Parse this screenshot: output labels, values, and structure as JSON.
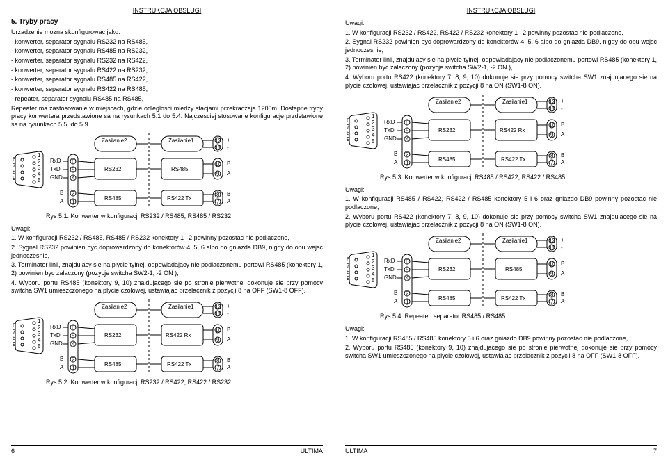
{
  "header": "INSTRUKCJA OBSLUGI",
  "footer_brand": "ULTIMA",
  "page_left_num": "6",
  "page_right_num": "7",
  "section5": {
    "title": "5. Tryby pracy",
    "intro": "Urzadzenie mozna skonfigurowac jako:",
    "bullets": [
      "- konwerter, separator sygnalu RS232 na RS485,",
      "- konwerter, separator sygnalu RS485 na RS232,",
      "- konwerter, separator sygnalu RS232 na RS422,",
      "- konwerter, separator sygnalu RS422 na RS232,",
      "- konwerter, separator sygnalu RS485 na RS422,",
      "- konwerter, separator sygnalu RS422 na RS485,",
      "- repeater, separator sygnalu RS485 na RS485,"
    ],
    "tail1": "Repeater ma zastosowanie w miejscach, gdzie odleglosci miedzy stacjami przekraczaja 1200m. Dostepne tryby pracy konwertera przedstawione sa na rysunkach 5.1 do 5.4. Najczesciej stosowane konfiguracje przdstawione sa na rysunkach 5.5. do 5.9."
  },
  "fig51_caption": "Rys 5.1. Konwerter w konfiguracji RS232 / RS485, RS485 / RS232",
  "uwagi51": {
    "title": "Uwagi:",
    "p1": "1. W konfiguracji RS232 / RS485, RS485 / RS232 konektory 1 i 2 powinny pozostac nie podlaczone,",
    "p2": "2. Sygnal RS232 powinien byc doprowardzony do konektorów 4, 5, 6 albo do gniazda DB9, nigdy do obu wejsc jednoczesnie,",
    "p3": "3. Terminator linii, znajdujacy sie na plycie tylnej, odpowiadajacy nie podlaczonemu portowi RS485 (konektory 1, 2) powinien byc zalaczony (pozycje switcha SW2-1, -2  ON ),",
    "p4": "4. Wyboru portu RS485 (konektory 9, 10) znajdujacego sie po stronie pierwotnej dokonuje sie przy pomocy switcha SW1 umieszczonego na plycie czolowej, ustawiajac przelacznik z pozycji 8 na OFF (SW1-8 OFF)."
  },
  "fig52_caption": "Rys 5.2. Konwerter w konfiguracji RS232 / RS422, RS422 / RS232",
  "uwagi_right_top": {
    "title": "Uwagi:",
    "p1": "1. W konfiguracji RS232 / RS422, RS422 / RS232 konektory 1 i 2 powinny pozostac nie podlaczone,",
    "p2": "2. Sygnal RS232 powinien byc doprowardzony do konektorów 4, 5, 6 albo do gniazda DB9, nigdy do obu wejsc jednoczesnie,",
    "p3": "3. Terminator linii, znajdujacy sie na plycie tylnej, odpowiadajacy nie podlaczonemu portowi RS485 (konektory 1, 2) powinien byc zalaczony (pozycje switcha SW2-1, -2  ON ),",
    "p4": "4. Wyboru portu RS422 (konektory 7, 8, 9, 10) dokonuje sie przy pomocy switcha SW1 znajdujacego sie na plycie czolowej, ustawiajac przelacznik z pozycji 8 na ON (SW1-8 ON)."
  },
  "fig53_caption": "Rys 5.3. Konwerter w konfiguracji RS485 / RS422, RS422 / RS485",
  "uwagi53": {
    "title": "Uwagi:",
    "p1": "1. W konfiguracji RS485 / RS422, RS422 / RS485 konektory 5 i 6 oraz gniazdo DB9 powinny pozostac nie podlaczone,",
    "p2": "2. Wyboru portu RS422 (konektory 7, 8, 9, 10) dokonuje sie przy pomocy switcha SW1 znajdujacego sie na plycie czolowej, ustawiajac przelacznik z pozycji 8 na ON (SW1-8 ON)."
  },
  "fig54_caption": "Rys 5.4. Repeater, separator RS485 / RS485",
  "uwagi54": {
    "title": "Uwagi:",
    "p1": "1. W konfiguracji RS485 / RS485 konektory 5 i 6 oraz gniazdo DB9 powinny pozostac nie podlaczone,",
    "p2": "2. Wyboru portu RS485 (konektory 9, 10) znajdujacego sie po stronie pierwotnej dokonuje sie przy pomocy switcha SW1 umieszczonego na plycie czolowej, ustawiajac przelacznik z pozycji 8 na OFF (SW1-8 OFF)."
  },
  "diagram_labels": {
    "zasilanie2": "Zasilanie\n2",
    "zasilanie1": "Zasilanie\n1",
    "rs232": "RS232",
    "rs485": "RS485",
    "rs422tx": "RS422 Tx",
    "rs422rx": "RS422 Rx",
    "rxd": "RxD",
    "txd": "TxD",
    "gnd": "GND",
    "plus": "+",
    "minus": "-",
    "A": "A",
    "B": "B",
    "t12": "12",
    "t11": "11",
    "t10": "10",
    "t9": "9",
    "t8": "8",
    "t7": "7",
    "t6": "6",
    "t5": "5",
    "t4": "4",
    "t3": "3",
    "t2": "2",
    "t1": "1",
    "d6": "6",
    "d7": "7",
    "d8": "8",
    "d9": "9",
    "d1": "1",
    "d2": "2",
    "d3": "3",
    "d4": "4",
    "d5": "5"
  }
}
